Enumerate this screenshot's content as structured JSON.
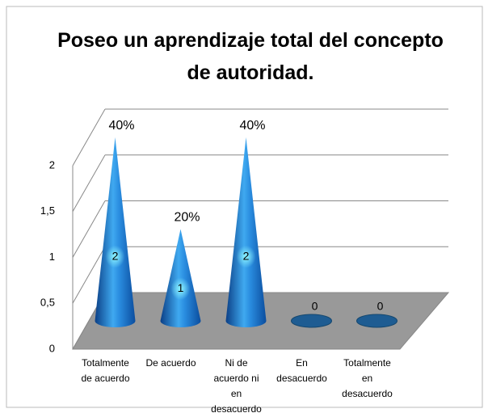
{
  "chart_data": {
    "type": "cone",
    "title": "Poseo un aprendizaje total del concepto de autoridad.",
    "categories": [
      "Totalmente de acuerdo",
      "De acuerdo",
      "Ni de acuerdo ni en desacuerdo",
      "En desacuerdo",
      "Totalmente en desacuerdo"
    ],
    "values": [
      2,
      1,
      2,
      0,
      0
    ],
    "shares": {
      "values": [
        40,
        20,
        40
      ],
      "value_labels": [
        "40%",
        "20%",
        "40%"
      ]
    },
    "color": "#1f6fc4",
    "ylim": [
      0,
      2
    ],
    "yticks": [
      0,
      {
        "value": 0.5,
        "label": "0,5"
      },
      1,
      {
        "value": 1.5,
        "label": "1,5"
      },
      2
    ],
    "grid": true
  }
}
